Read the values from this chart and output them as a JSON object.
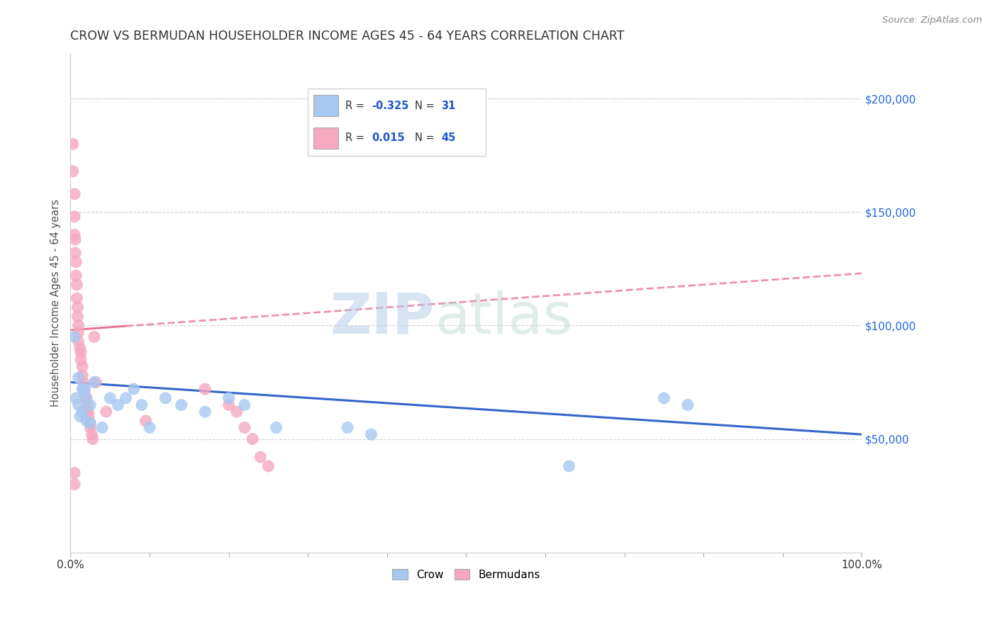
{
  "title": "CROW VS BERMUDAN HOUSEHOLDER INCOME AGES 45 - 64 YEARS CORRELATION CHART",
  "source": "Source: ZipAtlas.com",
  "ylabel": "Householder Income Ages 45 - 64 years",
  "xlim": [
    0,
    1.0
  ],
  "ylim": [
    0,
    220000
  ],
  "xtick_pos": [
    0.0,
    0.1,
    0.2,
    0.3,
    0.4,
    0.5,
    0.6,
    0.7,
    0.8,
    0.9,
    1.0
  ],
  "xticklabels": [
    "0.0%",
    "",
    "",
    "",
    "",
    "",
    "",
    "",
    "",
    "",
    "100.0%"
  ],
  "ytick_positions": [
    50000,
    100000,
    150000,
    200000
  ],
  "ytick_labels": [
    "$50,000",
    "$100,000",
    "$150,000",
    "$200,000"
  ],
  "crow_color": "#A8C8F0",
  "bermuda_color": "#F5A8C0",
  "crow_line_color": "#3366CC",
  "bermuda_line_color": "#E87090",
  "background_color": "#ffffff",
  "crow_x": [
    0.005,
    0.007,
    0.01,
    0.01,
    0.012,
    0.015,
    0.015,
    0.018,
    0.02,
    0.02,
    0.025,
    0.025,
    0.03,
    0.04,
    0.05,
    0.06,
    0.07,
    0.08,
    0.09,
    0.1,
    0.12,
    0.14,
    0.17,
    0.2,
    0.22,
    0.26,
    0.35,
    0.38,
    0.63,
    0.75,
    0.78
  ],
  "crow_y": [
    95000,
    68000,
    77000,
    65000,
    60000,
    72000,
    62000,
    72000,
    68000,
    58000,
    65000,
    57000,
    75000,
    55000,
    68000,
    65000,
    68000,
    72000,
    65000,
    55000,
    68000,
    65000,
    62000,
    68000,
    65000,
    55000,
    55000,
    52000,
    38000,
    68000,
    65000
  ],
  "bermuda_x": [
    0.003,
    0.003,
    0.005,
    0.005,
    0.005,
    0.006,
    0.006,
    0.007,
    0.007,
    0.008,
    0.008,
    0.009,
    0.009,
    0.01,
    0.01,
    0.01,
    0.012,
    0.013,
    0.013,
    0.015,
    0.015,
    0.016,
    0.017,
    0.018,
    0.02,
    0.021,
    0.022,
    0.023,
    0.025,
    0.025,
    0.027,
    0.028,
    0.03,
    0.032,
    0.005,
    0.005,
    0.045,
    0.095,
    0.17,
    0.2,
    0.21,
    0.22,
    0.23,
    0.24,
    0.25
  ],
  "bermuda_y": [
    180000,
    168000,
    158000,
    148000,
    140000,
    138000,
    132000,
    128000,
    122000,
    118000,
    112000,
    108000,
    104000,
    100000,
    97000,
    93000,
    90000,
    88000,
    85000,
    82000,
    78000,
    75000,
    72000,
    70000,
    68000,
    65000,
    62000,
    60000,
    57000,
    55000,
    52000,
    50000,
    95000,
    75000,
    35000,
    30000,
    62000,
    58000,
    72000,
    65000,
    62000,
    55000,
    50000,
    42000,
    38000
  ]
}
